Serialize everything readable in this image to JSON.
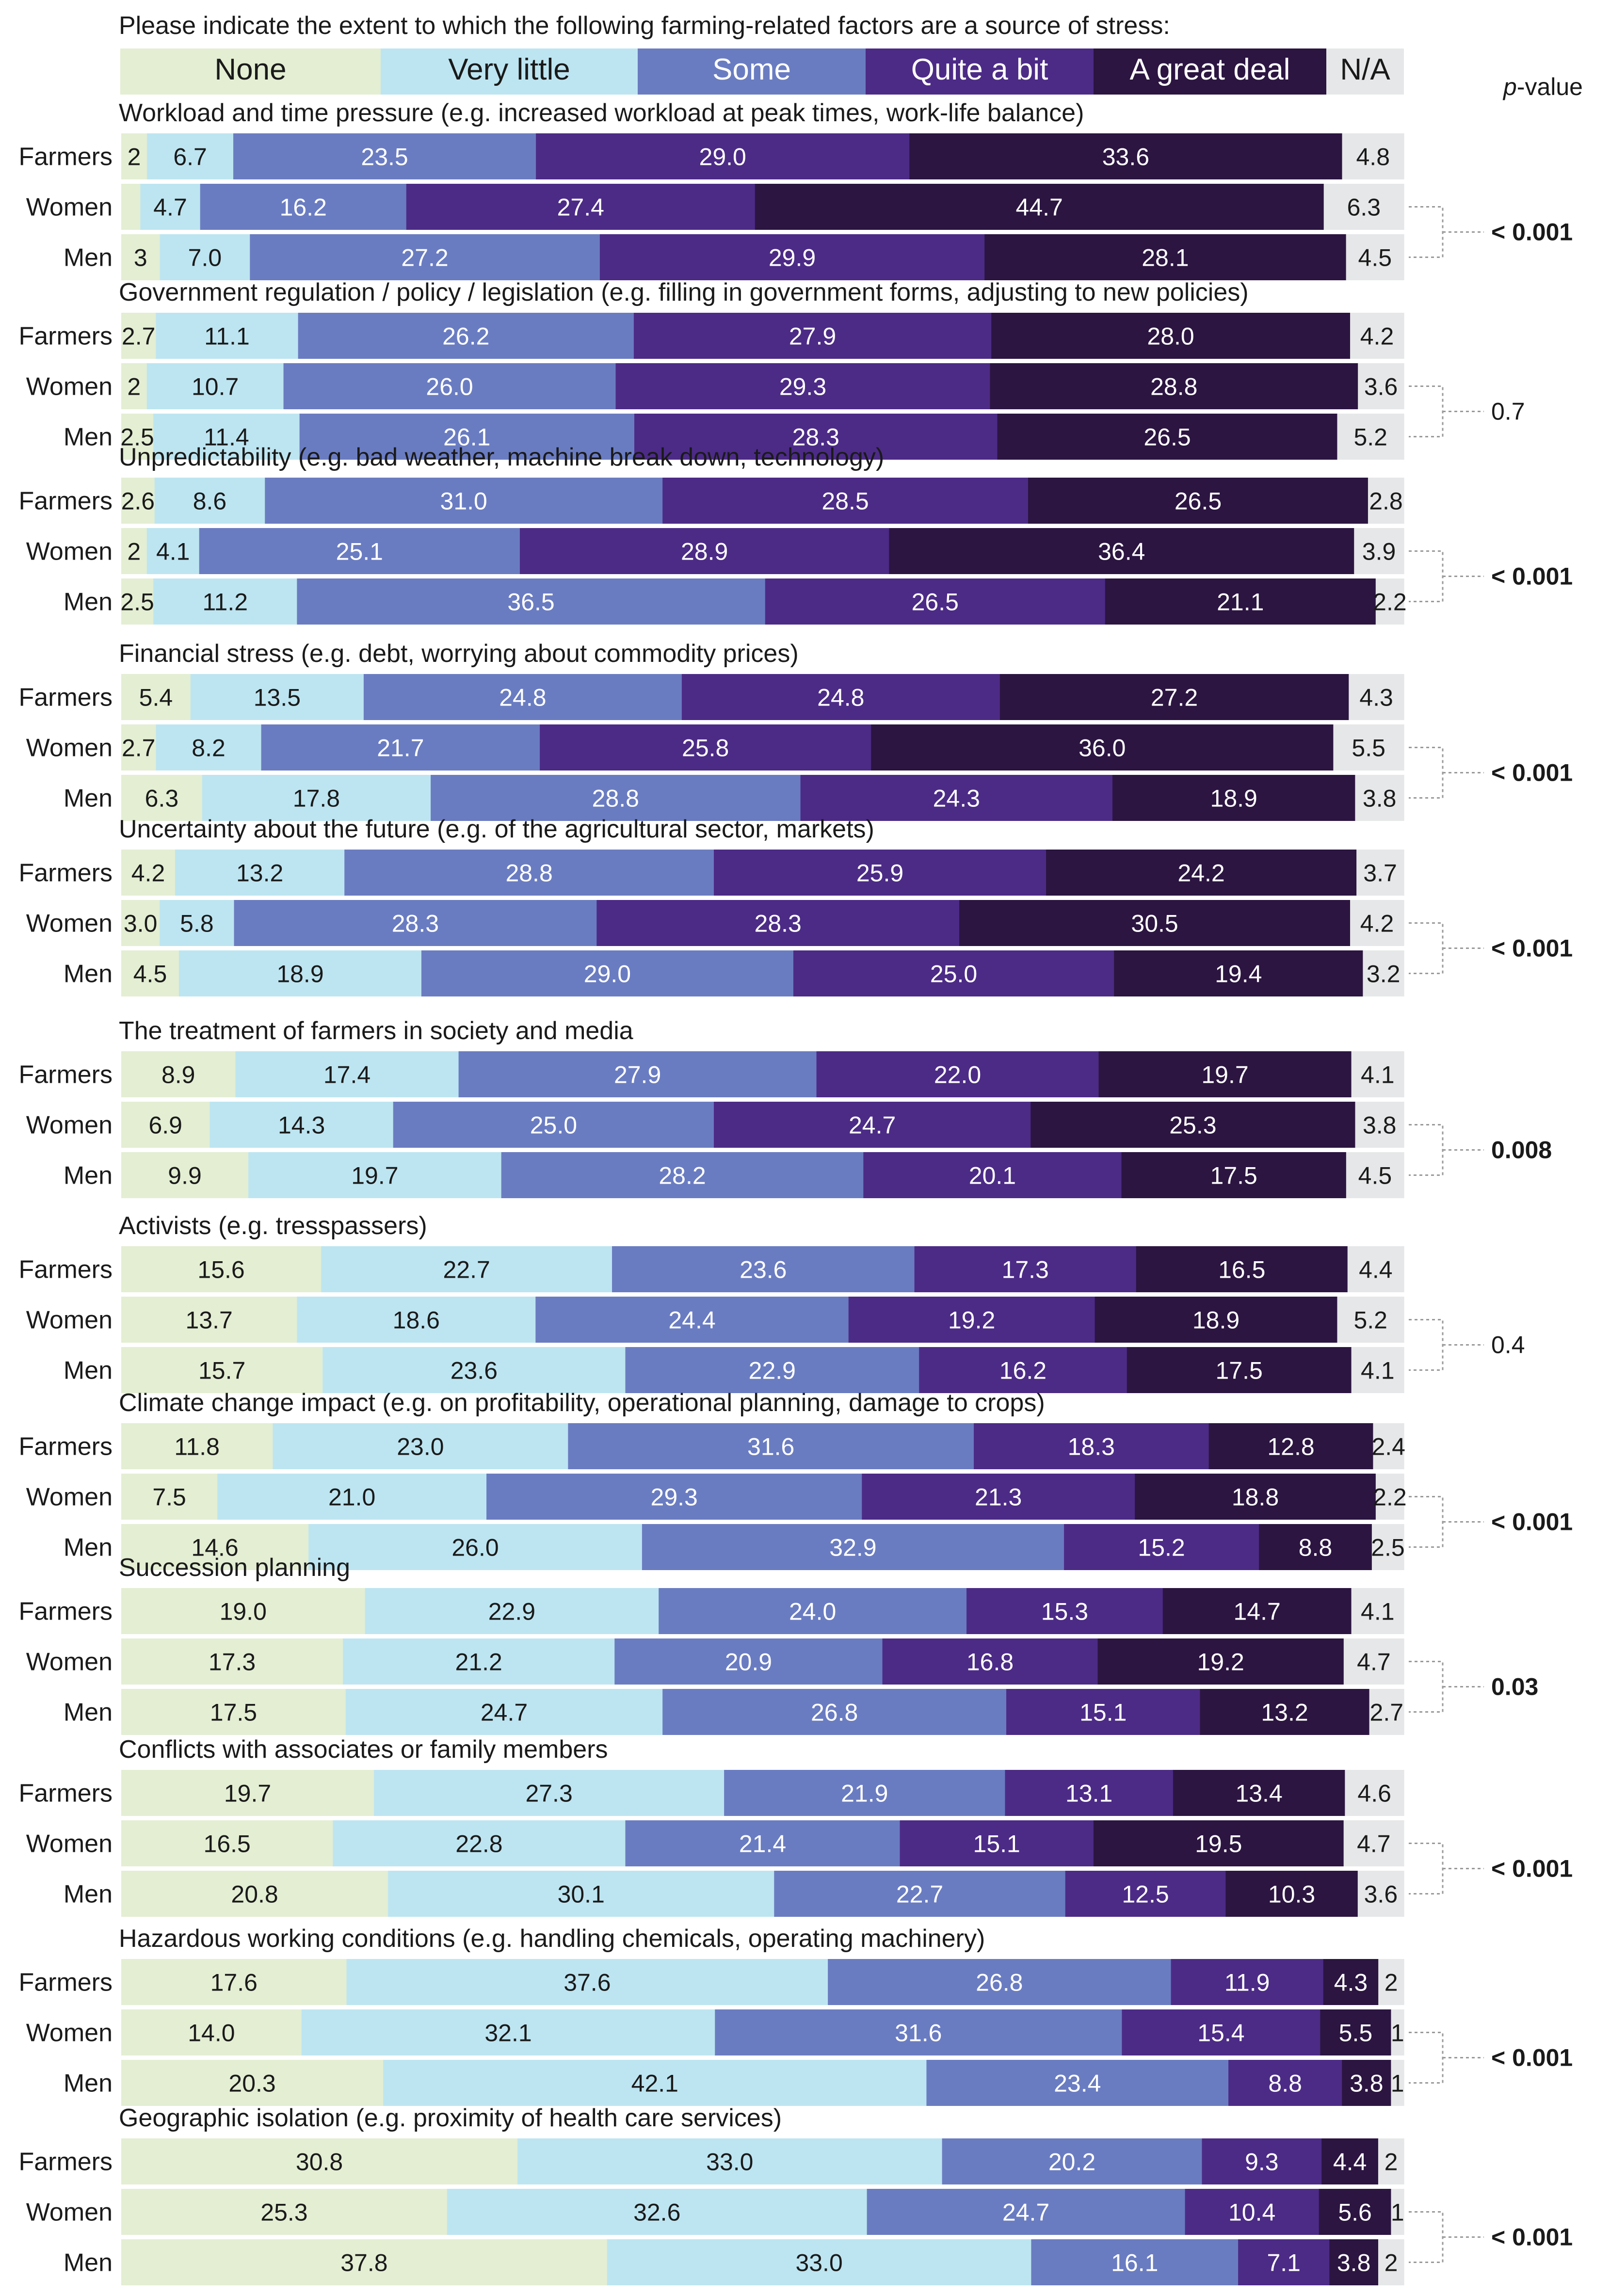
{
  "chart_data": {
    "type": "bar",
    "orientation": "horizontal",
    "stacked": true,
    "normalized_percent": true,
    "title": "Please indicate the extent to which the following farming-related factors are a source of stress:",
    "pvalue_header_italic": "p",
    "pvalue_header_rest": "-value",
    "legend": [
      {
        "label": "None",
        "color": "#e3eed3",
        "text_color": "#1a1a1a"
      },
      {
        "label": "Very little",
        "color": "#bde5f1",
        "text_color": "#1a1a1a"
      },
      {
        "label": "Some",
        "color": "#6a7cc1",
        "text_color": "#ffffff"
      },
      {
        "label": "Quite a bit",
        "color": "#4c2b86",
        "text_color": "#ffffff"
      },
      {
        "label": "A great deal",
        "color": "#2c1541",
        "text_color": "#ffffff"
      },
      {
        "label": "N/A",
        "color": "#e6e7e8",
        "text_color": "#1a1a1a"
      }
    ],
    "groups": [
      "Farmers",
      "Women",
      "Men"
    ],
    "factors": [
      {
        "title": "Workload and time pressure (e.g. increased workload at peak times, work-life balance)",
        "p": "< 0.001",
        "significant": true,
        "rows": [
          [
            "2",
            "6.7",
            "23.5",
            "29.0",
            "33.6",
            "4.8"
          ],
          [
            "",
            "4.7",
            "16.2",
            "27.4",
            "44.7",
            "6.3"
          ],
          [
            "3",
            "7.0",
            "27.2",
            "29.9",
            "28.1",
            "4.5"
          ]
        ]
      },
      {
        "title": "Government regulation / policy / legislation (e.g. filling in government forms, adjusting to new policies)",
        "p": "0.7",
        "significant": false,
        "rows": [
          [
            "2.7",
            "11.1",
            "26.2",
            "27.9",
            "28.0",
            "4.2"
          ],
          [
            "2",
            "10.7",
            "26.0",
            "29.3",
            "28.8",
            "3.6"
          ],
          [
            "2.5",
            "11.4",
            "26.1",
            "28.3",
            "26.5",
            "5.2"
          ]
        ]
      },
      {
        "title": "Unpredictability (e.g. bad weather, machine break down, technology)",
        "p": "< 0.001",
        "significant": true,
        "rows": [
          [
            "2.6",
            "8.6",
            "31.0",
            "28.5",
            "26.5",
            "2.8"
          ],
          [
            "2",
            "4.1",
            "25.1",
            "28.9",
            "36.4",
            "3.9"
          ],
          [
            "2.5",
            "11.2",
            "36.5",
            "26.5",
            "21.1",
            "2.2"
          ]
        ]
      },
      {
        "title": "Financial stress (e.g. debt, worrying about commodity prices)",
        "p": "< 0.001",
        "significant": true,
        "rows": [
          [
            "5.4",
            "13.5",
            "24.8",
            "24.8",
            "27.2",
            "4.3"
          ],
          [
            "2.7",
            "8.2",
            "21.7",
            "25.8",
            "36.0",
            "5.5"
          ],
          [
            "6.3",
            "17.8",
            "28.8",
            "24.3",
            "18.9",
            "3.8"
          ]
        ]
      },
      {
        "title": "Uncertainty about the future (e.g. of the agricultural sector, markets)",
        "p": "< 0.001",
        "significant": true,
        "rows": [
          [
            "4.2",
            "13.2",
            "28.8",
            "25.9",
            "24.2",
            "3.7"
          ],
          [
            "3.0",
            "5.8",
            "28.3",
            "28.3",
            "30.5",
            "4.2"
          ],
          [
            "4.5",
            "18.9",
            "29.0",
            "25.0",
            "19.4",
            "3.2"
          ]
        ]
      },
      {
        "title": "The treatment of farmers in society and media",
        "p": "0.008",
        "significant": true,
        "rows": [
          [
            "8.9",
            "17.4",
            "27.9",
            "22.0",
            "19.7",
            "4.1"
          ],
          [
            "6.9",
            "14.3",
            "25.0",
            "24.7",
            "25.3",
            "3.8"
          ],
          [
            "9.9",
            "19.7",
            "28.2",
            "20.1",
            "17.5",
            "4.5"
          ]
        ]
      },
      {
        "title": "Activists (e.g. tresspassers)",
        "p": "0.4",
        "significant": false,
        "rows": [
          [
            "15.6",
            "22.7",
            "23.6",
            "17.3",
            "16.5",
            "4.4"
          ],
          [
            "13.7",
            "18.6",
            "24.4",
            "19.2",
            "18.9",
            "5.2"
          ],
          [
            "15.7",
            "23.6",
            "22.9",
            "16.2",
            "17.5",
            "4.1"
          ]
        ]
      },
      {
        "title": "Climate change impact (e.g. on profitability, operational planning, damage to crops)",
        "p": "< 0.001",
        "significant": true,
        "rows": [
          [
            "11.8",
            "23.0",
            "31.6",
            "18.3",
            "12.8",
            "2.4"
          ],
          [
            "7.5",
            "21.0",
            "29.3",
            "21.3",
            "18.8",
            "2.2"
          ],
          [
            "14.6",
            "26.0",
            "32.9",
            "15.2",
            "8.8",
            "2.5"
          ]
        ]
      },
      {
        "title": "Succession planning",
        "p": "0.03",
        "significant": true,
        "rows": [
          [
            "19.0",
            "22.9",
            "24.0",
            "15.3",
            "14.7",
            "4.1"
          ],
          [
            "17.3",
            "21.2",
            "20.9",
            "16.8",
            "19.2",
            "4.7"
          ],
          [
            "17.5",
            "24.7",
            "26.8",
            "15.1",
            "13.2",
            "2.7"
          ]
        ]
      },
      {
        "title": "Conflicts with associates or family members",
        "p": "< 0.001",
        "significant": true,
        "rows": [
          [
            "19.7",
            "27.3",
            "21.9",
            "13.1",
            "13.4",
            "4.6"
          ],
          [
            "16.5",
            "22.8",
            "21.4",
            "15.1",
            "19.5",
            "4.7"
          ],
          [
            "20.8",
            "30.1",
            "22.7",
            "12.5",
            "10.3",
            "3.6"
          ]
        ]
      },
      {
        "title": "Hazardous working conditions (e.g. handling chemicals, operating machinery)",
        "p": "< 0.001",
        "significant": true,
        "rows": [
          [
            "17.6",
            "37.6",
            "26.8",
            "11.9",
            "4.3",
            "2"
          ],
          [
            "14.0",
            "32.1",
            "31.6",
            "15.4",
            "5.5",
            "1"
          ],
          [
            "20.3",
            "42.1",
            "23.4",
            "8.8",
            "3.8",
            "1"
          ]
        ]
      },
      {
        "title": "Geographic isolation (e.g. proximity of health care services)",
        "p": "< 0.001",
        "significant": true,
        "rows": [
          [
            "30.8",
            "33.0",
            "20.2",
            "9.3",
            "4.4",
            "2"
          ],
          [
            "25.3",
            "32.6",
            "24.7",
            "10.4",
            "5.6",
            "1"
          ],
          [
            "37.8",
            "33.0",
            "16.1",
            "7.1",
            "3.8",
            "2"
          ]
        ]
      }
    ]
  }
}
